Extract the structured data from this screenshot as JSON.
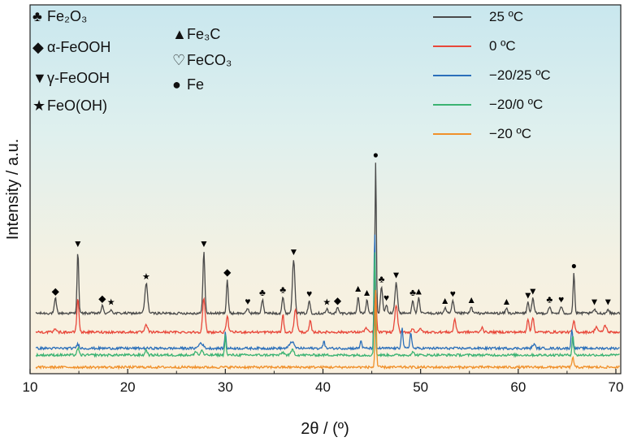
{
  "chart_data": {
    "type": "line",
    "title": "",
    "xlabel": "2θ / (º)",
    "ylabel": "Intensity / a.u.",
    "xlim": [
      10,
      70.5
    ],
    "x_ticks": [
      10,
      20,
      30,
      40,
      50,
      60,
      70
    ],
    "y_ticks_shown": false,
    "grid": false,
    "legend_position": "top-right",
    "background": "light-blue-to-cream vertical gradient",
    "series": [
      {
        "name": "25 ºC",
        "color": "#4a4a4a",
        "baseline": 4,
        "peaks": [
          [
            12.6,
            1.1,
            0.15
          ],
          [
            14.9,
            4.6,
            0.12
          ],
          [
            17.4,
            0.55,
            0.15
          ],
          [
            18.3,
            0.3,
            0.15
          ],
          [
            21.9,
            2.2,
            0.2
          ],
          [
            27.8,
            4.6,
            0.14
          ],
          [
            30.2,
            2.5,
            0.13
          ],
          [
            32.3,
            0.35,
            0.15
          ],
          [
            33.8,
            1.0,
            0.15
          ],
          [
            35.9,
            1.2,
            0.15
          ],
          [
            37.0,
            4.0,
            0.18
          ],
          [
            38.6,
            0.9,
            0.15
          ],
          [
            40.4,
            0.3,
            0.15
          ],
          [
            41.5,
            0.4,
            0.15
          ],
          [
            43.6,
            1.3,
            0.13
          ],
          [
            44.5,
            1.0,
            0.13
          ],
          [
            45.4,
            11.2,
            0.1
          ],
          [
            46.0,
            2.0,
            0.15
          ],
          [
            46.5,
            0.6,
            0.15
          ],
          [
            47.5,
            2.3,
            0.18
          ],
          [
            49.2,
            1.0,
            0.15
          ],
          [
            49.8,
            1.1,
            0.15
          ],
          [
            52.5,
            0.4,
            0.15
          ],
          [
            53.3,
            0.9,
            0.15
          ],
          [
            55.2,
            0.45,
            0.15
          ],
          [
            58.8,
            0.35,
            0.15
          ],
          [
            61.0,
            0.8,
            0.15
          ],
          [
            61.5,
            1.1,
            0.15
          ],
          [
            63.2,
            0.5,
            0.15
          ],
          [
            64.4,
            0.5,
            0.15
          ],
          [
            65.7,
            3.0,
            0.12
          ],
          [
            67.8,
            0.3,
            0.15
          ],
          [
            69.2,
            0.3,
            0.15
          ]
        ]
      },
      {
        "name": "0 ºC",
        "color": "#e8473a",
        "baseline": 2.6,
        "peaks": [
          [
            12.6,
            0.3,
            0.15
          ],
          [
            14.9,
            2.5,
            0.15
          ],
          [
            21.9,
            0.5,
            0.2
          ],
          [
            27.8,
            2.5,
            0.18
          ],
          [
            30.2,
            1.2,
            0.15
          ],
          [
            35.9,
            1.3,
            0.13
          ],
          [
            37.2,
            1.7,
            0.2
          ],
          [
            38.7,
            0.8,
            0.15
          ],
          [
            44.4,
            0.3,
            0.2
          ],
          [
            45.4,
            3.0,
            0.12
          ],
          [
            47.5,
            2.0,
            0.2
          ],
          [
            49.2,
            0.3,
            0.15
          ],
          [
            50.0,
            0.3,
            0.15
          ],
          [
            53.5,
            1.0,
            0.15
          ],
          [
            56.3,
            0.4,
            0.15
          ],
          [
            61.0,
            1.0,
            0.15
          ],
          [
            61.5,
            1.1,
            0.15
          ],
          [
            65.7,
            0.8,
            0.15
          ],
          [
            68.0,
            0.4,
            0.2
          ],
          [
            68.9,
            0.5,
            0.2
          ]
        ]
      },
      {
        "name": "−20/25 ºC",
        "color": "#2b6fba",
        "baseline": 1.4,
        "peaks": [
          [
            14.9,
            0.3,
            0.2
          ],
          [
            27.5,
            0.4,
            0.3
          ],
          [
            30.0,
            1.2,
            0.1
          ],
          [
            36.8,
            0.5,
            0.3
          ],
          [
            40.1,
            0.6,
            0.12
          ],
          [
            43.9,
            0.6,
            0.12
          ],
          [
            45.3,
            8.7,
            0.1
          ],
          [
            48.1,
            1.5,
            0.13
          ],
          [
            49.0,
            1.2,
            0.13
          ],
          [
            61.6,
            0.3,
            0.2
          ],
          [
            65.5,
            1.4,
            0.12
          ]
        ]
      },
      {
        "name": "−20/0 ºC",
        "color": "#3bb372",
        "baseline": 0.9,
        "peaks": [
          [
            14.9,
            0.5,
            0.15
          ],
          [
            21.9,
            0.4,
            0.15
          ],
          [
            27.0,
            0.3,
            0.15
          ],
          [
            27.6,
            0.4,
            0.15
          ],
          [
            30.0,
            1.5,
            0.1
          ],
          [
            35.9,
            0.2,
            0.2
          ],
          [
            36.9,
            0.4,
            0.2
          ],
          [
            45.3,
            8.0,
            0.1
          ],
          [
            49.2,
            0.2,
            0.2
          ],
          [
            65.6,
            1.5,
            0.12
          ]
        ]
      },
      {
        "name": "−20 ºC",
        "color": "#f0902a",
        "baseline": 0,
        "peaks": [
          [
            45.4,
            5.8,
            0.1
          ],
          [
            65.6,
            0.8,
            0.12
          ]
        ]
      }
    ],
    "phase_legend": [
      {
        "symbol": "♣",
        "label": "Fe₂O₃"
      },
      {
        "symbol": "▲",
        "label": "Fe₃C"
      },
      {
        "symbol": "◆",
        "label": "α-FeOOH"
      },
      {
        "symbol": "♡",
        "label": "FeCO₃"
      },
      {
        "symbol": "▼",
        "label": "γ-FeOOH"
      },
      {
        "symbol": "●",
        "label": "Fe"
      },
      {
        "symbol": "★",
        "label": "FeO(OH)"
      }
    ],
    "annotations": {
      "series": "25 ºC",
      "markers": [
        [
          "◆",
          12.6
        ],
        [
          "▼",
          14.9
        ],
        [
          "◆",
          17.4
        ],
        [
          "★",
          18.3
        ],
        [
          "★",
          21.9
        ],
        [
          "▼",
          27.8
        ],
        [
          "◆",
          30.2
        ],
        [
          "♥",
          32.3
        ],
        [
          "♣",
          33.8
        ],
        [
          "♣",
          35.9
        ],
        [
          "▼",
          37.0
        ],
        [
          "♥",
          38.6
        ],
        [
          "★",
          40.4
        ],
        [
          "◆",
          41.5
        ],
        [
          "▲",
          43.6
        ],
        [
          "▲",
          44.5
        ],
        [
          "●",
          45.4
        ],
        [
          "♣",
          46.0
        ],
        [
          "♥",
          46.5
        ],
        [
          "▼",
          47.5
        ],
        [
          "♣",
          49.2
        ],
        [
          "▲",
          49.8
        ],
        [
          "▲",
          52.5
        ],
        [
          "♥",
          53.3
        ],
        [
          "▲",
          55.2
        ],
        [
          "▲",
          58.8
        ],
        [
          "▼",
          61.0
        ],
        [
          "▼",
          61.5
        ],
        [
          "♣",
          63.2
        ],
        [
          "♥",
          64.4
        ],
        [
          "●",
          65.7
        ],
        [
          "▼",
          67.8
        ],
        [
          "▼",
          69.2
        ]
      ]
    }
  }
}
